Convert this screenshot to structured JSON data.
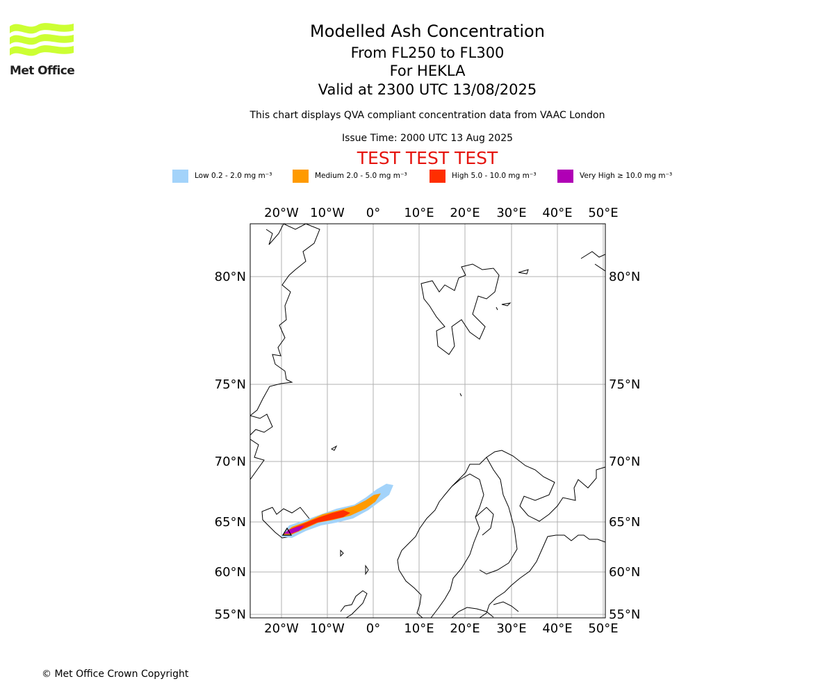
{
  "header": {
    "title": "Modelled Ash Concentration",
    "flight_levels": "From FL250 to FL300",
    "volcano": "For HEKLA",
    "valid_time": "Valid at 2300 UTC 13/08/2025",
    "subtitle": "This chart displays QVA compliant concentration data from VAAC London",
    "issue_time": "Issue Time: 2000 UTC 13 Aug 2025",
    "test_banner": "TEST TEST TEST"
  },
  "logo": {
    "text": "Met Office",
    "color": "#ccff33"
  },
  "legend": [
    {
      "label": "Low 0.2 - 2.0 mg m⁻³",
      "color": "#a3d3fa"
    },
    {
      "label": "Medium 2.0 - 5.0 mg m⁻³",
      "color": "#ff9a00"
    },
    {
      "label": "High 5.0 - 10.0 mg m⁻³",
      "color": "#ff2e00"
    },
    {
      "label": "Very High ≥ 10.0 mg m⁻³",
      "color": "#b000b5"
    }
  ],
  "map": {
    "lon_range": [
      -27,
      50
    ],
    "lat_range": [
      55,
      83
    ],
    "lon_ticks": [
      "20°W",
      "10°W",
      "0°",
      "10°E",
      "20°E",
      "30°E",
      "40°E",
      "50°E"
    ],
    "lat_ticks": [
      "80°N",
      "75°N",
      "70°N",
      "65°N",
      "60°N",
      "55°N"
    ],
    "gridlines": true,
    "volcano_marker": "triangle",
    "plume_direction": "north-east from Iceland toward the Norwegian Sea"
  },
  "footer": {
    "copyright": "© Met Office Crown Copyright"
  }
}
